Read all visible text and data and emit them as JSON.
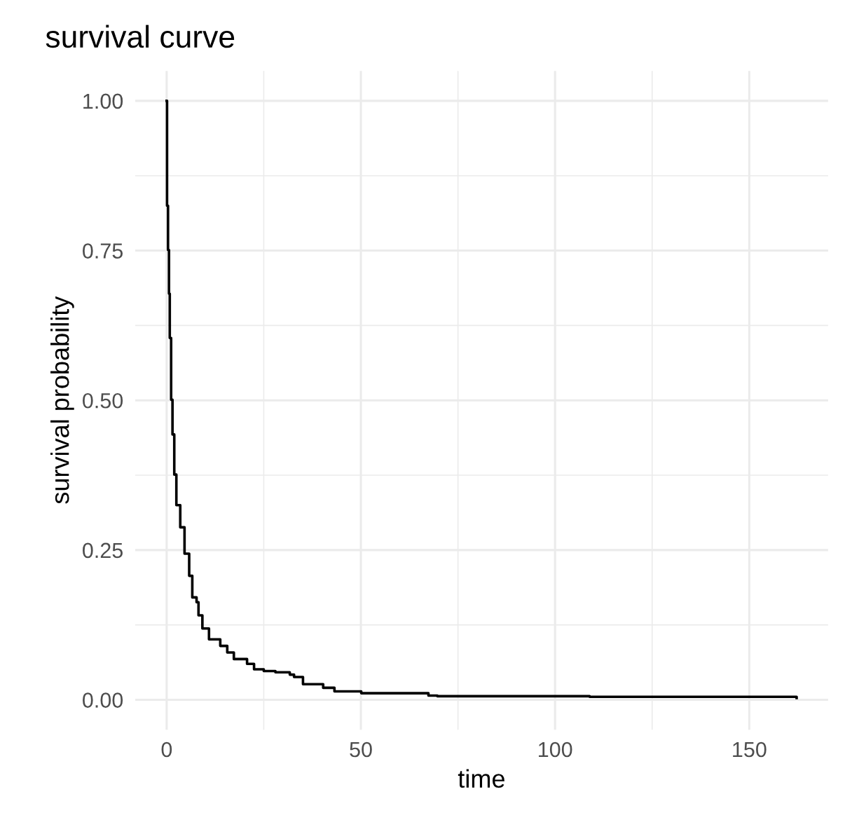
{
  "chart_data": {
    "type": "step",
    "title": "survival curve",
    "xlabel": "time",
    "ylabel": "survival probability",
    "x": [
      0,
      0.1,
      0.35,
      0.6,
      0.8,
      1.15,
      1.5,
      1.96,
      2.5,
      3.5,
      4.6,
      5.8,
      6.6,
      7.7,
      8.2,
      9.2,
      10.9,
      13.8,
      15.6,
      17.3,
      20.7,
      22.5,
      25,
      28,
      31.7,
      32.8,
      35.1,
      40.3,
      43.2,
      50.1,
      67.4,
      69.7,
      108.9,
      162.2
    ],
    "series": [
      {
        "color": "#000000",
        "values": [
          1.0,
          0.825,
          0.751,
          0.678,
          0.604,
          0.501,
          0.443,
          0.376,
          0.325,
          0.288,
          0.244,
          0.207,
          0.171,
          0.163,
          0.141,
          0.119,
          0.101,
          0.09,
          0.079,
          0.068,
          0.06,
          0.051,
          0.048,
          0.046,
          0.042,
          0.038,
          0.026,
          0.02,
          0.014,
          0.011,
          0.007,
          0.006,
          0.005,
          0.003
        ]
      }
    ],
    "xlim": [
      -8.1,
      170.3
    ],
    "ylim": [
      -0.05,
      1.05
    ],
    "xticks": [
      0,
      {
        "value": 25,
        "label": null
      },
      50,
      {
        "value": 75,
        "label": null
      },
      100,
      {
        "value": 125,
        "label": null
      },
      150
    ],
    "yticks": [
      "0.00",
      {
        "value": 0.125,
        "label": null
      },
      {
        "value": 0.25,
        "label": "0.25"
      },
      {
        "value": 0.375,
        "label": null
      },
      {
        "value": 0.5,
        "label": "0.50"
      },
      {
        "value": 0.625,
        "label": null
      },
      {
        "value": 0.75,
        "label": "0.75"
      },
      {
        "value": 0.875,
        "label": null
      },
      {
        "value": 1.0,
        "label": "1.00"
      }
    ],
    "grid": true,
    "line_style": "solid"
  }
}
